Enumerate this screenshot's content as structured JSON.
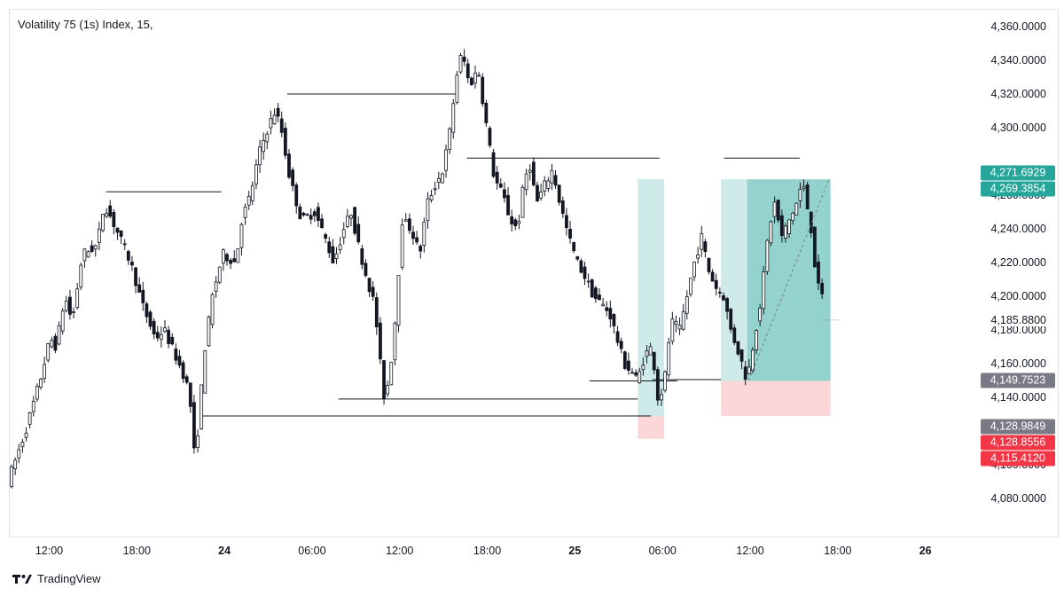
{
  "header": {
    "title": "Volatility 75 (1s) Index, 15,"
  },
  "footer": {
    "brand": "TradingView",
    "logo_text": "17"
  },
  "colors": {
    "candle_body": "#131722",
    "long_profit": "#26a69a",
    "long_stop": "#f23645",
    "price_grey": "#787b86"
  },
  "chart_data": {
    "type": "candlestick",
    "symbol": "Volatility 75 (1s) Index",
    "interval": "15",
    "ylim": [
      4060,
      4370
    ],
    "y_ticks": [
      "4,080.0000",
      "4,100.0000",
      "4,140.0000",
      "4,160.0000",
      "4,180.0000",
      "4,200.0000",
      "4,220.0000",
      "4,240.0000",
      "4,260.0000",
      "4,300.0000",
      "4,320.0000",
      "4,340.0000",
      "4,360.0000"
    ],
    "y_tick_values": [
      4080,
      4100,
      4140,
      4160,
      4180,
      4200,
      4220,
      4240,
      4260,
      4300,
      4320,
      4340,
      4360
    ],
    "x_ticks": [
      {
        "label": "12:00",
        "t": 12,
        "bold": false
      },
      {
        "label": "18:00",
        "t": 18,
        "bold": false
      },
      {
        "label": "24",
        "t": 24,
        "bold": true
      },
      {
        "label": "06:00",
        "t": 30,
        "bold": false
      },
      {
        "label": "12:00",
        "t": 36,
        "bold": false
      },
      {
        "label": "18:00",
        "t": 42,
        "bold": false
      },
      {
        "label": "25",
        "t": 48,
        "bold": true
      },
      {
        "label": "06:00",
        "t": 54,
        "bold": false
      },
      {
        "label": "12:00",
        "t": 60,
        "bold": false
      },
      {
        "label": "18:00",
        "t": 66,
        "bold": false
      },
      {
        "label": "26",
        "t": 72,
        "bold": true
      }
    ],
    "price_labels": [
      {
        "text": "4,271.6929",
        "value": 4271.6929,
        "style": "green"
      },
      {
        "text": "4,269.3854",
        "value": 4269.3854,
        "style": "green"
      },
      {
        "text": "4,185.8800",
        "value": 4185.88,
        "style": "plain"
      },
      {
        "text": "4,149.7523",
        "value": 4149.7523,
        "style": "grey"
      },
      {
        "text": "4,128.9849",
        "value": 4128.9849,
        "style": "grey"
      },
      {
        "text": "4,128.8556",
        "value": 4128.8556,
        "style": "red"
      },
      {
        "text": "4,115.4120",
        "value": 4115.412,
        "style": "red"
      }
    ],
    "levels": [
      {
        "from": 15.9,
        "to": 23.8,
        "price": 4262
      },
      {
        "from": 28.3,
        "to": 40.0,
        "price": 4320
      },
      {
        "from": 40.6,
        "to": 53.8,
        "price": 4282
      },
      {
        "from": 58.2,
        "to": 63.4,
        "price": 4282
      },
      {
        "from": 22.4,
        "to": 53.2,
        "price": 4128.98
      },
      {
        "from": 31.8,
        "to": 52.3,
        "price": 4139
      },
      {
        "from": 49.0,
        "to": 55.0,
        "price": 4149.75
      },
      {
        "from": 53.3,
        "to": 58.0,
        "price": 4150.5
      }
    ],
    "positions": [
      {
        "type": "long",
        "from": 52.3,
        "to": 54.1,
        "entry": 4128.86,
        "target": 4269.4,
        "stop": 4115.41
      },
      {
        "type": "long",
        "from": 58.0,
        "to": 65.5,
        "entry": 4149.75,
        "target": 4269.4,
        "stop": 4128.98
      },
      {
        "type": "long-filled",
        "from": 59.8,
        "to": 65.5,
        "entry": 4149.75,
        "target": 4269.4
      }
    ],
    "keypoints": [
      [
        9.3,
        4090
      ],
      [
        10.5,
        4120
      ],
      [
        11.5,
        4150
      ],
      [
        12.2,
        4175
      ],
      [
        12.6,
        4170
      ],
      [
        13.2,
        4200
      ],
      [
        13.7,
        4185
      ],
      [
        14.4,
        4225
      ],
      [
        15.4,
        4230
      ],
      [
        15.9,
        4255
      ],
      [
        16.7,
        4240
      ],
      [
        17.7,
        4220
      ],
      [
        18.5,
        4195
      ],
      [
        19.4,
        4175
      ],
      [
        20.0,
        4180
      ],
      [
        21.0,
        4160
      ],
      [
        21.5,
        4150
      ],
      [
        21.9,
        4130
      ],
      [
        22.1,
        4100
      ],
      [
        22.4,
        4130
      ],
      [
        22.8,
        4170
      ],
      [
        23.3,
        4200
      ],
      [
        24.0,
        4225
      ],
      [
        24.9,
        4220
      ],
      [
        25.3,
        4245
      ],
      [
        25.9,
        4260
      ],
      [
        26.5,
        4285
      ],
      [
        27.1,
        4300
      ],
      [
        27.6,
        4310
      ],
      [
        28.0,
        4300
      ],
      [
        28.6,
        4270
      ],
      [
        29.4,
        4245
      ],
      [
        30.3,
        4250
      ],
      [
        31.0,
        4235
      ],
      [
        31.6,
        4220
      ],
      [
        32.3,
        4240
      ],
      [
        32.8,
        4250
      ],
      [
        33.3,
        4230
      ],
      [
        33.9,
        4210
      ],
      [
        34.4,
        4195
      ],
      [
        34.7,
        4170
      ],
      [
        35.0,
        4140
      ],
      [
        35.4,
        4150
      ],
      [
        35.8,
        4185
      ],
      [
        36.3,
        4245
      ],
      [
        36.9,
        4240
      ],
      [
        37.5,
        4225
      ],
      [
        38.0,
        4255
      ],
      [
        38.5,
        4265
      ],
      [
        39.1,
        4275
      ],
      [
        39.6,
        4300
      ],
      [
        40.0,
        4330
      ],
      [
        40.4,
        4345
      ],
      [
        40.9,
        4325
      ],
      [
        41.5,
        4335
      ],
      [
        42.0,
        4305
      ],
      [
        42.6,
        4270
      ],
      [
        43.2,
        4260
      ],
      [
        43.7,
        4245
      ],
      [
        44.2,
        4240
      ],
      [
        44.6,
        4265
      ],
      [
        45.0,
        4280
      ],
      [
        45.5,
        4255
      ],
      [
        46.0,
        4265
      ],
      [
        46.6,
        4275
      ],
      [
        47.1,
        4255
      ],
      [
        47.7,
        4235
      ],
      [
        48.3,
        4220
      ],
      [
        48.9,
        4210
      ],
      [
        49.4,
        4200
      ],
      [
        50.0,
        4195
      ],
      [
        50.5,
        4190
      ],
      [
        51.0,
        4175
      ],
      [
        51.5,
        4160
      ],
      [
        52.0,
        4155
      ],
      [
        52.4,
        4150
      ],
      [
        52.9,
        4165
      ],
      [
        53.4,
        4170
      ],
      [
        53.8,
        4140
      ],
      [
        54.2,
        4145
      ],
      [
        54.7,
        4185
      ],
      [
        55.3,
        4180
      ],
      [
        55.8,
        4200
      ],
      [
        56.3,
        4220
      ],
      [
        56.8,
        4235
      ],
      [
        57.3,
        4215
      ],
      [
        57.8,
        4205
      ],
      [
        58.3,
        4200
      ],
      [
        58.8,
        4180
      ],
      [
        59.4,
        4165
      ],
      [
        59.9,
        4150
      ],
      [
        60.3,
        4170
      ],
      [
        60.9,
        4200
      ],
      [
        61.4,
        4240
      ],
      [
        61.8,
        4255
      ],
      [
        62.3,
        4235
      ],
      [
        62.8,
        4245
      ],
      [
        63.3,
        4255
      ],
      [
        63.7,
        4268
      ],
      [
        64.0,
        4255
      ],
      [
        64.3,
        4240
      ],
      [
        64.6,
        4215
      ],
      [
        64.9,
        4200
      ]
    ]
  }
}
